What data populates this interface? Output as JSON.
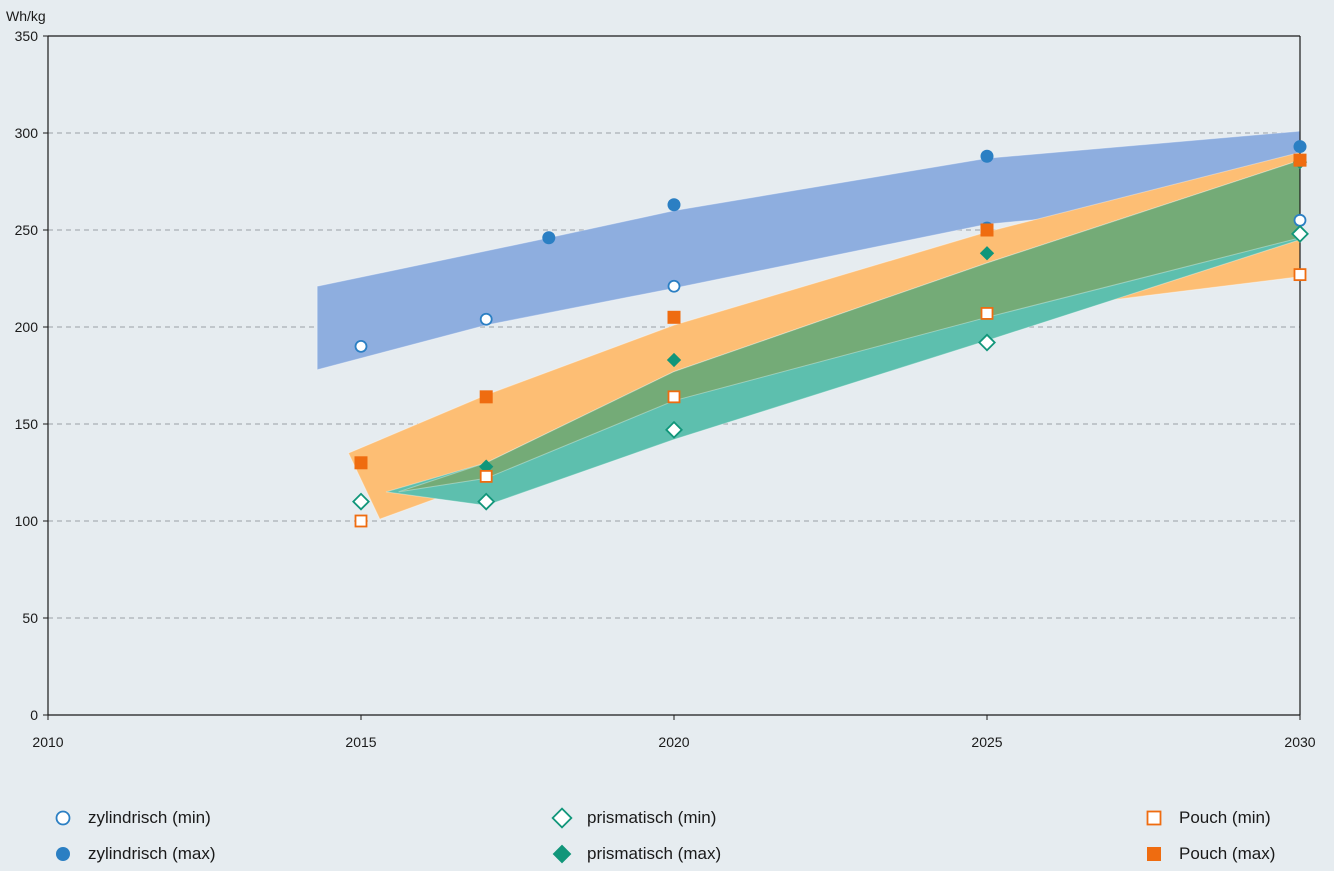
{
  "chart_data": {
    "type": "scatter",
    "ylabel": "Wh/kg",
    "xlim": [
      2010,
      2030
    ],
    "ylim": [
      0,
      350
    ],
    "x_ticks": [
      2010,
      2015,
      2020,
      2025,
      2030
    ],
    "y_ticks": [
      0,
      50,
      100,
      150,
      200,
      250,
      300,
      350
    ],
    "grid": "horizontal-dashed",
    "legend_position": "bottom",
    "series": [
      {
        "name": "zylindrisch (min)",
        "marker": "circle-open",
        "color": "#2b7fc3",
        "points": [
          [
            2015,
            190
          ],
          [
            2017,
            204
          ],
          [
            2020,
            221
          ],
          [
            2025,
            251
          ],
          [
            2030,
            255
          ]
        ]
      },
      {
        "name": "zylindrisch (max)",
        "marker": "circle-filled",
        "color": "#2b7fc3",
        "points": [
          [
            2018,
            246
          ],
          [
            2020,
            263
          ],
          [
            2025,
            288
          ],
          [
            2030,
            293
          ]
        ]
      },
      {
        "name": "prismatisch (min)",
        "marker": "diamond-open",
        "color": "#11967a",
        "points": [
          [
            2015,
            110
          ],
          [
            2017,
            110
          ],
          [
            2020,
            147
          ],
          [
            2025,
            192
          ],
          [
            2030,
            248
          ]
        ]
      },
      {
        "name": "prismatisch (max)",
        "marker": "diamond-filled",
        "color": "#11967a",
        "points": [
          [
            2017,
            128
          ],
          [
            2020,
            183
          ],
          [
            2025,
            238
          ],
          [
            2030,
            285
          ]
        ]
      },
      {
        "name": "Pouch (min)",
        "marker": "square-open",
        "color": "#ef6c10",
        "points": [
          [
            2015,
            100
          ],
          [
            2017,
            123
          ],
          [
            2020,
            164
          ],
          [
            2025,
            207
          ],
          [
            2030,
            227
          ]
        ]
      },
      {
        "name": "Pouch (max)",
        "marker": "square-filled",
        "color": "#ef6c10",
        "points": [
          [
            2015,
            130
          ],
          [
            2017,
            164
          ],
          [
            2020,
            205
          ],
          [
            2025,
            250
          ],
          [
            2030,
            286
          ]
        ]
      }
    ],
    "bands": [
      {
        "group": "zylindrisch",
        "color": "#8eaedf",
        "upper": [
          [
            2014.3,
            221
          ],
          [
            2018,
            246
          ],
          [
            2020,
            260
          ],
          [
            2025,
            287
          ],
          [
            2030,
            301
          ]
        ],
        "lower": [
          [
            2014.3,
            178
          ],
          [
            2017,
            201
          ],
          [
            2020,
            220
          ],
          [
            2025,
            253
          ],
          [
            2030,
            268
          ]
        ]
      },
      {
        "group": "Pouch",
        "color": "#fdbe74",
        "upper": [
          [
            2014.8,
            135
          ],
          [
            2017,
            165
          ],
          [
            2020,
            201
          ],
          [
            2025,
            249
          ],
          [
            2030,
            290
          ]
        ],
        "lower": [
          [
            2015.3,
            101
          ],
          [
            2017,
            121
          ],
          [
            2020,
            162
          ],
          [
            2025,
            206
          ],
          [
            2030,
            226
          ]
        ]
      },
      {
        "group": "prismatisch",
        "color": "#5dbfae",
        "upper": [
          [
            2015.4,
            115
          ],
          [
            2017,
            130
          ],
          [
            2020,
            177
          ],
          [
            2025,
            233
          ],
          [
            2030,
            286
          ]
        ],
        "lower": [
          [
            2015.4,
            115
          ],
          [
            2017,
            108
          ],
          [
            2020,
            142
          ],
          [
            2025,
            193
          ],
          [
            2030,
            245
          ]
        ]
      },
      {
        "group": "overlap",
        "color": "#74ab77",
        "upper": [
          [
            2015.6,
            115
          ],
          [
            2017,
            130
          ],
          [
            2020,
            177
          ],
          [
            2025,
            233
          ],
          [
            2030,
            286
          ]
        ],
        "lower": [
          [
            2015.6,
            115
          ],
          [
            2017,
            122
          ],
          [
            2020,
            162
          ],
          [
            2025,
            205
          ],
          [
            2030,
            246
          ]
        ]
      }
    ]
  }
}
